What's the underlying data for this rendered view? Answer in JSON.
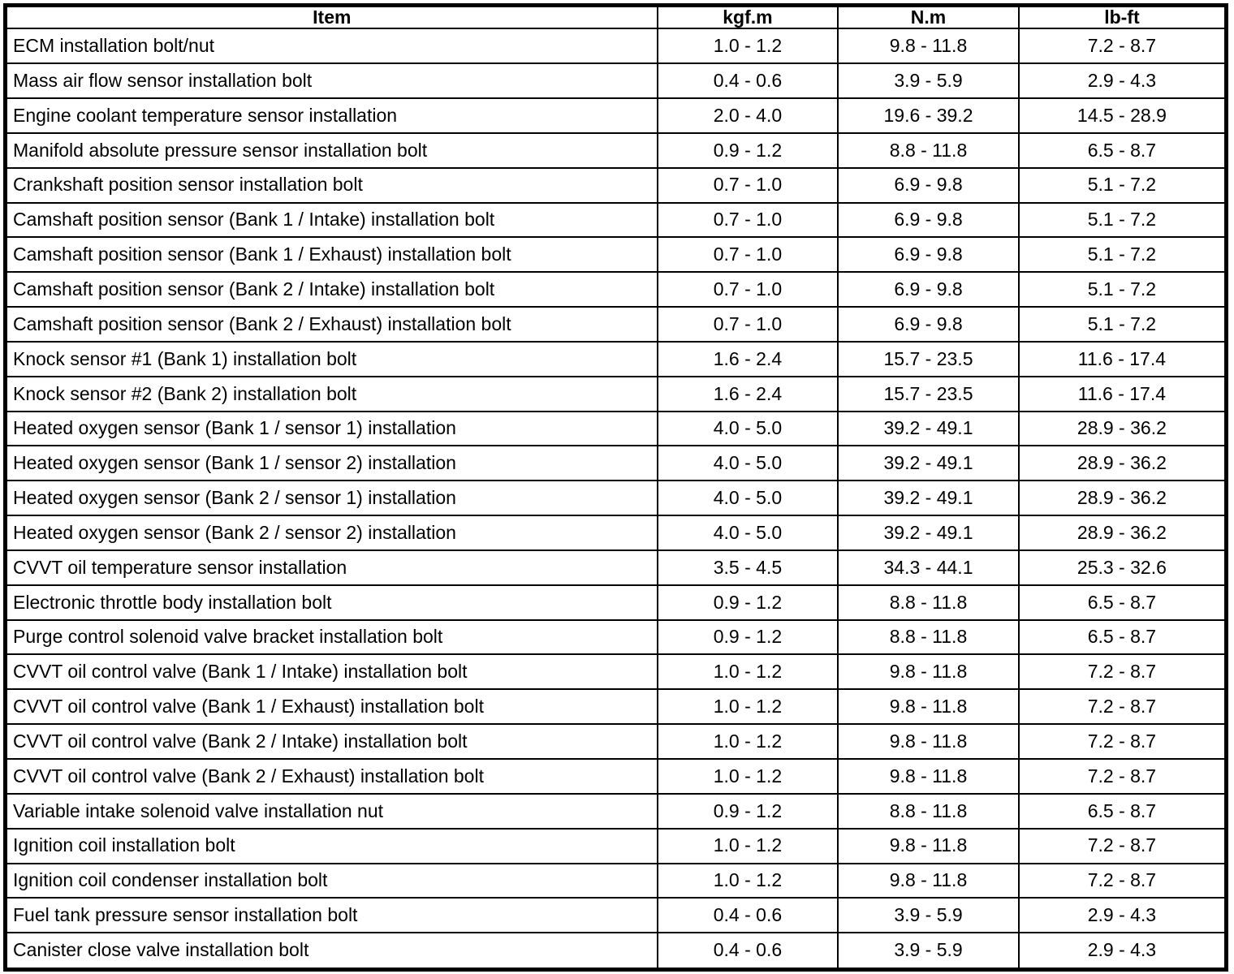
{
  "page": {
    "background_color": "#ffffff",
    "border_color": "#000000"
  },
  "table": {
    "columns": [
      "Item",
      "kgf.m",
      "N.m",
      "lb-ft"
    ],
    "rows": [
      [
        "ECM installation bolt/nut",
        "1.0 - 1.2",
        "9.8 - 11.8",
        "7.2 - 8.7"
      ],
      [
        "Mass air flow sensor installation bolt",
        "0.4 - 0.6",
        "3.9 - 5.9",
        "2.9 - 4.3"
      ],
      [
        "Engine coolant temperature sensor installation",
        "2.0 - 4.0",
        "19.6 - 39.2",
        "14.5 - 28.9"
      ],
      [
        "Manifold absolute pressure sensor installation bolt",
        "0.9 - 1.2",
        "8.8 - 11.8",
        "6.5 - 8.7"
      ],
      [
        "Crankshaft position sensor installation bolt",
        "0.7 - 1.0",
        "6.9 - 9.8",
        "5.1 - 7.2"
      ],
      [
        "Camshaft position sensor (Bank 1 / Intake) installation bolt",
        "0.7 - 1.0",
        "6.9 - 9.8",
        "5.1 - 7.2"
      ],
      [
        "Camshaft position sensor (Bank 1 / Exhaust) installation bolt",
        "0.7 - 1.0",
        "6.9 - 9.8",
        "5.1 - 7.2"
      ],
      [
        "Camshaft position sensor (Bank 2 / Intake) installation bolt",
        "0.7 - 1.0",
        "6.9 - 9.8",
        "5.1 - 7.2"
      ],
      [
        "Camshaft position sensor (Bank 2 / Exhaust) installation bolt",
        "0.7 - 1.0",
        "6.9 - 9.8",
        "5.1 - 7.2"
      ],
      [
        "Knock sensor #1 (Bank 1) installation bolt",
        "1.6 - 2.4",
        "15.7 - 23.5",
        "11.6 - 17.4"
      ],
      [
        "Knock sensor #2 (Bank 2) installation bolt",
        "1.6 - 2.4",
        "15.7 - 23.5",
        "11.6 - 17.4"
      ],
      [
        "Heated oxygen sensor (Bank 1 / sensor 1) installation",
        "4.0 - 5.0",
        "39.2 - 49.1",
        "28.9 - 36.2"
      ],
      [
        "Heated oxygen sensor (Bank 1 / sensor 2) installation",
        "4.0 - 5.0",
        "39.2 - 49.1",
        "28.9 - 36.2"
      ],
      [
        "Heated oxygen sensor (Bank 2 / sensor 1) installation",
        "4.0 - 5.0",
        "39.2 - 49.1",
        "28.9 - 36.2"
      ],
      [
        "Heated oxygen sensor (Bank 2 / sensor 2) installation",
        "4.0 - 5.0",
        "39.2 - 49.1",
        "28.9 - 36.2"
      ],
      [
        "CVVT oil temperature sensor installation",
        "3.5 - 4.5",
        "34.3 - 44.1",
        "25.3 - 32.6"
      ],
      [
        "Electronic throttle body installation bolt",
        "0.9 - 1.2",
        "8.8 - 11.8",
        "6.5 - 8.7"
      ],
      [
        "Purge control solenoid valve bracket installation bolt",
        "0.9 - 1.2",
        "8.8 - 11.8",
        "6.5 - 8.7"
      ],
      [
        "CVVT oil control valve (Bank 1 / Intake) installation bolt",
        "1.0 - 1.2",
        "9.8 - 11.8",
        "7.2 - 8.7"
      ],
      [
        "CVVT oil control valve (Bank 1 / Exhaust) installation bolt",
        "1.0 - 1.2",
        "9.8 - 11.8",
        "7.2 - 8.7"
      ],
      [
        "CVVT oil control valve (Bank 2 / Intake) installation bolt",
        "1.0 - 1.2",
        "9.8 - 11.8",
        "7.2 - 8.7"
      ],
      [
        "CVVT oil control valve (Bank 2 / Exhaust) installation bolt",
        "1.0 - 1.2",
        "9.8 - 11.8",
        "7.2 - 8.7"
      ],
      [
        "Variable intake solenoid valve installation nut",
        "0.9 - 1.2",
        "8.8 - 11.8",
        "6.5 - 8.7"
      ],
      [
        "Ignition coil installation bolt",
        "1.0 - 1.2",
        "9.8 - 11.8",
        "7.2 - 8.7"
      ],
      [
        "Ignition coil condenser installation bolt",
        "1.0 - 1.2",
        "9.8 - 11.8",
        "7.2 - 8.7"
      ],
      [
        "Fuel tank pressure sensor installation bolt",
        "0.4 - 0.6",
        "3.9 - 5.9",
        "2.9 - 4.3"
      ],
      [
        "Canister close valve installation bolt",
        "0.4 - 0.6",
        "3.9 - 5.9",
        "2.9 - 4.3"
      ]
    ]
  }
}
